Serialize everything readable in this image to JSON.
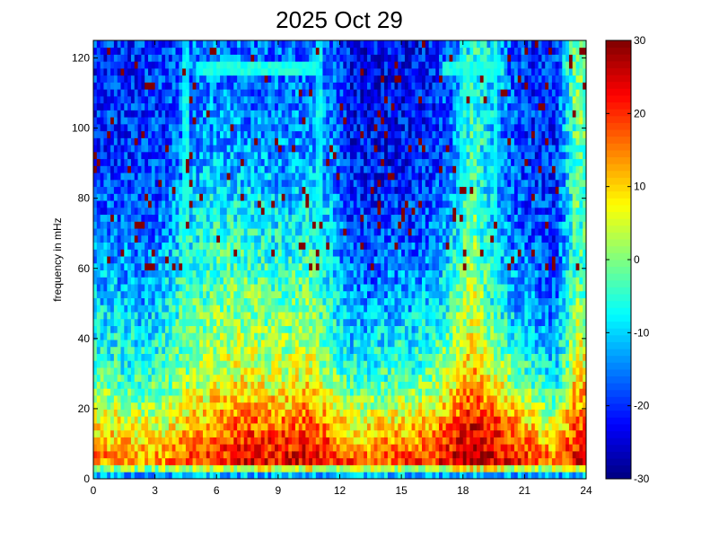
{
  "chart_data": {
    "type": "heatmap",
    "title": "2025 Oct 29",
    "xlabel": "",
    "ylabel": "frequency in mHz",
    "xlim": [
      0,
      24
    ],
    "ylim": [
      0,
      125
    ],
    "x_ticks": [
      "0",
      "3",
      "6",
      "9",
      "12",
      "15",
      "18",
      "21",
      "24"
    ],
    "y_ticks": [
      "0",
      "20",
      "40",
      "60",
      "80",
      "100",
      "120"
    ],
    "colormap": "jet",
    "clim": [
      -30,
      30
    ],
    "colorbar_ticks": [
      "30",
      "20",
      "10",
      "0",
      "-10",
      "-20",
      "-30"
    ],
    "grid": false,
    "hours": [
      0.5,
      1.5,
      2.5,
      3.5,
      4.5,
      5.5,
      6.5,
      7.5,
      8.5,
      9.5,
      10.5,
      11.5,
      12.5,
      13.5,
      14.5,
      15.5,
      16.5,
      17.5,
      18.5,
      19.5,
      20.5,
      21.5,
      22.5,
      23.5
    ],
    "frequencies_mHz": [
      1,
      5,
      15,
      30,
      50,
      70,
      90,
      110,
      124
    ],
    "values_dB": [
      [
        -12,
        -12,
        -12,
        -12,
        -12,
        -12,
        -12,
        -12,
        -12,
        -12,
        -12,
        -12,
        -12,
        -12,
        -12,
        -12,
        -12,
        -12,
        -12,
        -12,
        -12,
        -12,
        -12,
        -12
      ],
      [
        15,
        15,
        14,
        15,
        18,
        20,
        22,
        24,
        24,
        24,
        24,
        22,
        18,
        18,
        18,
        20,
        20,
        25,
        28,
        26,
        22,
        20,
        16,
        24
      ],
      [
        8,
        8,
        6,
        6,
        10,
        12,
        16,
        18,
        16,
        16,
        18,
        14,
        8,
        8,
        10,
        10,
        12,
        18,
        24,
        20,
        14,
        10,
        4,
        18
      ],
      [
        -4,
        -5,
        -6,
        -4,
        0,
        3,
        5,
        6,
        4,
        4,
        6,
        0,
        -6,
        -6,
        -4,
        -4,
        -2,
        4,
        12,
        6,
        -2,
        -6,
        -10,
        8
      ],
      [
        -10,
        -10,
        -12,
        -8,
        -4,
        -2,
        0,
        0,
        -2,
        -2,
        0,
        -6,
        -14,
        -14,
        -12,
        -12,
        -10,
        -4,
        6,
        -6,
        -12,
        -14,
        -16,
        0
      ],
      [
        -16,
        -16,
        -17,
        -14,
        -8,
        -6,
        -5,
        -6,
        -7,
        -8,
        -6,
        -10,
        -18,
        -20,
        -18,
        -18,
        -16,
        -10,
        0,
        -10,
        -16,
        -18,
        -20,
        -4
      ],
      [
        -20,
        -20,
        -20,
        -18,
        -14,
        -12,
        -12,
        -12,
        -13,
        -14,
        -12,
        -14,
        -22,
        -22,
        -22,
        -21,
        -20,
        -16,
        -4,
        -12,
        -18,
        -20,
        -20,
        -2
      ],
      [
        -20,
        -20,
        -20,
        -19,
        -16,
        -15,
        -15,
        -16,
        -16,
        -16,
        -15,
        -16,
        -22,
        -23,
        -23,
        -22,
        -21,
        -16,
        -4,
        -10,
        -18,
        -20,
        -20,
        0
      ],
      [
        -20,
        -20,
        -20,
        -19,
        -16,
        -15,
        -15,
        -16,
        -16,
        -16,
        -15,
        -16,
        -22,
        -23,
        -23,
        -22,
        -21,
        -16,
        -4,
        -10,
        -18,
        -20,
        -20,
        0
      ]
    ]
  }
}
